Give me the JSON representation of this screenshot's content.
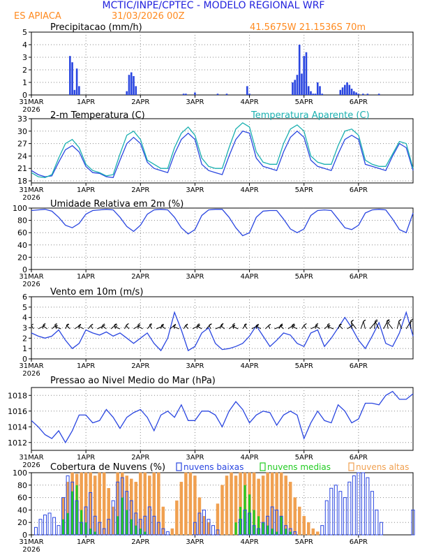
{
  "header": {
    "title": "MCTIC/INPE/CPTEC - MODELO REGIONAL WRF",
    "station": "ES APIACA",
    "run": "31/03/2026 00Z",
    "coords": "41.5675W  21.1536S  70m",
    "title_color": "#2222dd",
    "station_color": "#ff8a1f"
  },
  "x_axis": {
    "ticks": [
      "31MAR",
      "1APR",
      "2APR",
      "3APR",
      "4APR",
      "5APR",
      "6APR"
    ],
    "year": "2026",
    "tick_hours": [
      0,
      24,
      48,
      72,
      96,
      120,
      144
    ],
    "hours_range": [
      0,
      168
    ]
  },
  "colors": {
    "blue": "#2a46e0",
    "cyan": "#1ab0b0",
    "orange": "#f0a050",
    "green": "#22cc22",
    "purple": "#8866cc"
  },
  "chart_data": [
    {
      "type": "bar",
      "title": "Precipitacao (mm/h)",
      "ylim": [
        0,
        5
      ],
      "yticks": [
        "0",
        "1",
        "2",
        "3",
        "4",
        "5"
      ],
      "x_hours": [
        17,
        18,
        19,
        20,
        21,
        42,
        43,
        44,
        45,
        46,
        67,
        68,
        72,
        82,
        86,
        95,
        96,
        115,
        116,
        117,
        118,
        119,
        120,
        121,
        122,
        123,
        124,
        125,
        126,
        127,
        128,
        136,
        137,
        138,
        139,
        140,
        141,
        142,
        143,
        144,
        146,
        148,
        153
      ],
      "values": [
        3.1,
        2.6,
        0.4,
        2.1,
        0.7,
        0.3,
        1.6,
        1.8,
        1.5,
        0.7,
        0.1,
        0.1,
        0.2,
        0.1,
        0.1,
        0.7,
        0.1,
        1.0,
        1.2,
        1.6,
        4.0,
        1.7,
        3.1,
        3.4,
        0.7,
        0.3,
        0.1,
        0.1,
        1.0,
        0.7,
        0.1,
        0.4,
        0.6,
        0.8,
        1.0,
        0.8,
        0.5,
        0.3,
        0.2,
        0.1,
        0.1,
        0.1,
        0.1
      ]
    },
    {
      "type": "line",
      "title": "2-m Temperatura (C)",
      "legend_extra": "Temperatura Aparente (C)",
      "ylim": [
        17.5,
        33
      ],
      "yticks": [
        "18",
        "21",
        "24",
        "27",
        "30",
        "33"
      ],
      "series": [
        {
          "name": "2-m Temperatura (C)",
          "color": "#2a46e0",
          "x": [
            0,
            3,
            6,
            9,
            12,
            15,
            18,
            21,
            24,
            27,
            30,
            33,
            36,
            39,
            42,
            45,
            48,
            51,
            54,
            57,
            60,
            63,
            66,
            69,
            72,
            75,
            78,
            81,
            84,
            87,
            90,
            93,
            96,
            99,
            102,
            105,
            108,
            111,
            114,
            117,
            120,
            123,
            126,
            129,
            132,
            135,
            138,
            141,
            144,
            147,
            150,
            153,
            156,
            159,
            162,
            165,
            168
          ],
          "values": [
            20.5,
            19.5,
            19.0,
            19.2,
            22.5,
            25.5,
            26.5,
            25.0,
            21.5,
            20.0,
            19.8,
            19.0,
            18.8,
            23.0,
            27.0,
            28.5,
            27.0,
            22.5,
            21.0,
            20.5,
            20.0,
            24.5,
            28.0,
            29.5,
            28.0,
            22.0,
            20.5,
            20.0,
            19.5,
            24.0,
            28.0,
            30.0,
            29.5,
            23.5,
            21.5,
            21.0,
            20.5,
            25.0,
            28.5,
            30.0,
            28.5,
            23.0,
            21.5,
            21.0,
            20.5,
            24.5,
            28.0,
            29.0,
            28.0,
            22.0,
            21.5,
            21.0,
            20.5,
            24.0,
            27.0,
            26.0,
            20.5
          ]
        },
        {
          "name": "Temperatura Aparente (C)",
          "color": "#1ab0b0",
          "x": [
            0,
            3,
            6,
            9,
            12,
            15,
            18,
            21,
            24,
            27,
            30,
            33,
            36,
            39,
            42,
            45,
            48,
            51,
            54,
            57,
            60,
            63,
            66,
            69,
            72,
            75,
            78,
            81,
            84,
            87,
            90,
            93,
            96,
            99,
            102,
            105,
            108,
            111,
            114,
            117,
            120,
            123,
            126,
            129,
            132,
            135,
            138,
            141,
            144,
            147,
            150,
            153,
            156,
            159,
            162,
            165,
            168
          ],
          "values": [
            20.0,
            19.0,
            18.8,
            19.5,
            23.5,
            27.0,
            28.0,
            26.0,
            22.0,
            20.5,
            20.0,
            19.2,
            19.5,
            24.5,
            29.0,
            30.0,
            28.0,
            23.0,
            22.0,
            21.0,
            21.0,
            26.0,
            29.5,
            31.0,
            29.0,
            23.5,
            21.5,
            21.0,
            21.0,
            26.0,
            30.5,
            32.0,
            31.0,
            25.0,
            22.5,
            22.0,
            22.0,
            27.0,
            30.5,
            31.5,
            30.0,
            24.0,
            22.5,
            22.0,
            22.0,
            26.5,
            30.0,
            30.5,
            29.0,
            23.0,
            22.0,
            21.5,
            21.5,
            24.5,
            27.5,
            27.0,
            21.0
          ]
        }
      ]
    },
    {
      "type": "line",
      "title": "Umidade Relativa em 2m (%)",
      "ylim": [
        0,
        100
      ],
      "yticks": [
        "0",
        "20",
        "40",
        "60",
        "80",
        "100"
      ],
      "series": [
        {
          "name": "Umidade Relativa em 2m (%)",
          "color": "#2a46e0",
          "x": [
            0,
            3,
            6,
            9,
            12,
            15,
            18,
            21,
            24,
            27,
            30,
            33,
            36,
            39,
            42,
            45,
            48,
            51,
            54,
            57,
            60,
            63,
            66,
            69,
            72,
            75,
            78,
            81,
            84,
            87,
            90,
            93,
            96,
            99,
            102,
            105,
            108,
            111,
            114,
            117,
            120,
            123,
            126,
            129,
            132,
            135,
            138,
            141,
            144,
            147,
            150,
            153,
            156,
            159,
            162,
            165,
            168
          ],
          "values": [
            96,
            97,
            98,
            95,
            85,
            72,
            68,
            75,
            90,
            96,
            97,
            98,
            97,
            85,
            70,
            62,
            72,
            90,
            97,
            98,
            97,
            85,
            68,
            58,
            65,
            88,
            97,
            98,
            98,
            85,
            68,
            55,
            60,
            85,
            95,
            96,
            96,
            82,
            66,
            60,
            66,
            88,
            96,
            97,
            96,
            82,
            68,
            65,
            72,
            92,
            97,
            98,
            97,
            82,
            65,
            60,
            92
          ]
        }
      ]
    },
    {
      "type": "line",
      "title": "Vento em 10m (m/s)",
      "ylim": [
        0,
        6
      ],
      "yticks": [
        "0",
        "1",
        "2",
        "3",
        "4",
        "5",
        "6"
      ],
      "series": [
        {
          "name": "Vento em 10m (m/s)",
          "color": "#2a46e0",
          "x": [
            0,
            3,
            6,
            9,
            12,
            15,
            18,
            21,
            24,
            27,
            30,
            33,
            36,
            39,
            42,
            45,
            48,
            51,
            54,
            57,
            60,
            63,
            66,
            69,
            72,
            75,
            78,
            81,
            84,
            87,
            90,
            93,
            96,
            99,
            102,
            105,
            108,
            111,
            114,
            117,
            120,
            123,
            126,
            129,
            132,
            135,
            138,
            141,
            144,
            147,
            150,
            153,
            156,
            159,
            162,
            165,
            168
          ],
          "values": [
            2.5,
            2.2,
            2.0,
            2.2,
            2.8,
            1.8,
            1.0,
            1.5,
            2.8,
            2.5,
            2.3,
            2.6,
            2.2,
            2.5,
            2.0,
            1.5,
            2.0,
            2.5,
            1.5,
            0.8,
            2.0,
            4.5,
            2.8,
            0.8,
            1.2,
            2.5,
            3.0,
            1.5,
            0.9,
            1.0,
            1.2,
            1.5,
            2.2,
            3.2,
            2.2,
            1.2,
            1.8,
            2.5,
            2.3,
            1.5,
            1.2,
            2.5,
            2.8,
            1.2,
            2.0,
            3.0,
            4.0,
            3.0,
            1.8,
            1.0,
            2.2,
            3.5,
            1.5,
            1.2,
            2.5,
            4.5,
            2.2
          ]
        }
      ]
    },
    {
      "type": "line",
      "title": "Pressao ao Nivel Medio do Mar (hPa)",
      "ylim": [
        1011,
        1019
      ],
      "yticks": [
        "1012",
        "1014",
        "1016",
        "1018"
      ],
      "series": [
        {
          "name": "Pressao ao Nivel Medio do Mar (hPa)",
          "color": "#2a46e0",
          "x": [
            0,
            3,
            6,
            9,
            12,
            15,
            18,
            21,
            24,
            27,
            30,
            33,
            36,
            39,
            42,
            45,
            48,
            51,
            54,
            57,
            60,
            63,
            66,
            69,
            72,
            75,
            78,
            81,
            84,
            87,
            90,
            93,
            96,
            99,
            102,
            105,
            108,
            111,
            114,
            117,
            120,
            123,
            126,
            129,
            132,
            135,
            138,
            141,
            144,
            147,
            150,
            153,
            156,
            159,
            162,
            165,
            168
          ],
          "values": [
            1014.8,
            1014.0,
            1013.0,
            1012.5,
            1013.5,
            1012.0,
            1013.5,
            1015.5,
            1015.5,
            1014.5,
            1014.8,
            1016.2,
            1015.2,
            1013.8,
            1015.2,
            1015.8,
            1016.2,
            1015.2,
            1013.5,
            1015.5,
            1016.0,
            1015.2,
            1016.8,
            1014.8,
            1014.8,
            1016.0,
            1016.0,
            1015.5,
            1014.0,
            1016.0,
            1017.2,
            1016.2,
            1014.5,
            1015.5,
            1016.0,
            1015.8,
            1014.2,
            1015.5,
            1016.0,
            1015.5,
            1012.5,
            1014.5,
            1016.0,
            1014.8,
            1014.5,
            1016.8,
            1016.0,
            1014.5,
            1015.0,
            1017.0,
            1017.0,
            1016.8,
            1018.0,
            1018.5,
            1017.5,
            1017.5,
            1018.2
          ]
        }
      ]
    },
    {
      "type": "bar",
      "title": "Cobertura de Nuvens (%)",
      "ylim": [
        0,
        100
      ],
      "yticks": [
        "0",
        "20",
        "40",
        "60",
        "80",
        "100"
      ],
      "legend": [
        "nuvens baixas",
        "nuvens medias",
        "nuvens altas"
      ],
      "series": [
        {
          "name": "nuvens baixas",
          "x": [
            2,
            4,
            6,
            8,
            10,
            12,
            14,
            16,
            18,
            20,
            22,
            24,
            26,
            28,
            30,
            32,
            34,
            36,
            38,
            40,
            42,
            44,
            46,
            48,
            50,
            52,
            54,
            56,
            58,
            60,
            62,
            64,
            66,
            68,
            70,
            72,
            74,
            76,
            78,
            80,
            82,
            84,
            86,
            88,
            90,
            92,
            94,
            96,
            98,
            100,
            102,
            104,
            106,
            108,
            110,
            112,
            114,
            116,
            118,
            120,
            122,
            124,
            126,
            128,
            130,
            132,
            134,
            136,
            138,
            140,
            142,
            144,
            146,
            148,
            150,
            152,
            154,
            156,
            158,
            160,
            162,
            164,
            166,
            168
          ],
          "values": [
            12,
            25,
            32,
            35,
            28,
            15,
            60,
            95,
            85,
            55,
            20,
            45,
            68,
            30,
            20,
            10,
            25,
            55,
            85,
            92,
            70,
            55,
            35,
            25,
            30,
            45,
            30,
            20,
            10,
            5,
            0,
            0,
            0,
            0,
            0,
            20,
            35,
            40,
            25,
            15,
            8,
            0,
            0,
            0,
            0,
            25,
            40,
            35,
            15,
            10,
            20,
            30,
            45,
            40,
            30,
            15,
            10,
            5,
            0,
            0,
            0,
            0,
            0,
            15,
            55,
            75,
            80,
            70,
            60,
            85,
            95,
            100,
            100,
            92,
            70,
            40,
            20,
            0,
            0,
            0,
            0,
            0,
            0,
            40
          ]
        },
        {
          "name": "nuvens medias",
          "x": [
            14,
            16,
            18,
            20,
            22,
            24,
            26,
            28,
            38,
            40,
            42,
            44,
            46,
            48,
            50,
            90,
            92,
            94,
            96,
            98,
            100,
            102,
            104,
            106,
            108,
            110,
            112,
            114
          ],
          "values": [
            25,
            35,
            70,
            80,
            40,
            20,
            10,
            5,
            30,
            60,
            40,
            25,
            15,
            10,
            5,
            20,
            45,
            80,
            65,
            40,
            30,
            20,
            15,
            10,
            5,
            30,
            10,
            5
          ]
        },
        {
          "name": "nuvens altas",
          "x": [
            14,
            16,
            18,
            20,
            22,
            24,
            26,
            28,
            30,
            32,
            34,
            36,
            38,
            40,
            42,
            44,
            46,
            48,
            50,
            52,
            54,
            56,
            58,
            60,
            62,
            64,
            66,
            68,
            70,
            72,
            74,
            76,
            78,
            80,
            82,
            84,
            86,
            88,
            90,
            92,
            94,
            96,
            98,
            100,
            102,
            104,
            106,
            108,
            110,
            112,
            114,
            116,
            118,
            120,
            122,
            124,
            126
          ],
          "values": [
            60,
            85,
            100,
            98,
            100,
            100,
            100,
            95,
            100,
            100,
            75,
            45,
            100,
            100,
            95,
            90,
            85,
            100,
            100,
            95,
            100,
            100,
            45,
            0,
            10,
            55,
            85,
            100,
            100,
            95,
            60,
            30,
            20,
            0,
            50,
            80,
            95,
            100,
            95,
            100,
            100,
            100,
            100,
            90,
            95,
            100,
            100,
            100,
            100,
            95,
            85,
            60,
            45,
            30,
            20,
            10,
            5
          ]
        }
      ]
    }
  ]
}
